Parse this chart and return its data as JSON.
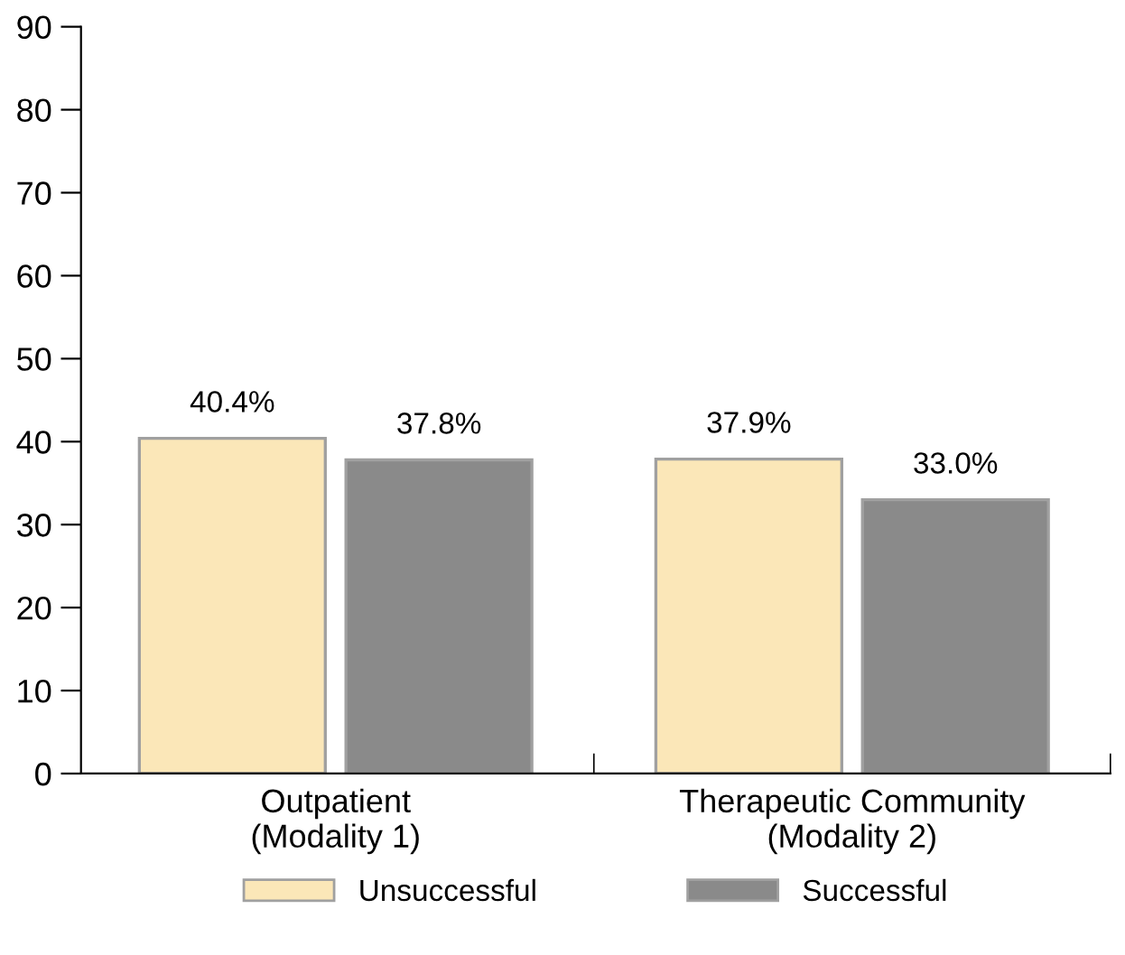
{
  "chart_data": {
    "type": "bar",
    "categories": [
      "Outpatient\n(Modality 1)",
      "Therapeutic Community\n(Modality 2)"
    ],
    "series": [
      {
        "name": "Unsuccessful",
        "color": "#fbe7b8",
        "values": [
          40.4,
          37.9
        ],
        "value_labels": [
          "40.4%",
          "37.9%"
        ]
      },
      {
        "name": "Successful",
        "color": "#8a8a8a",
        "values": [
          37.8,
          33.0
        ],
        "value_labels": [
          "37.8%",
          "33.0%"
        ]
      }
    ],
    "ylim": [
      0,
      90
    ],
    "yticks": [
      0,
      10,
      20,
      30,
      40,
      50,
      60,
      70,
      80,
      90
    ],
    "grid": false,
    "legend": "bottom"
  }
}
